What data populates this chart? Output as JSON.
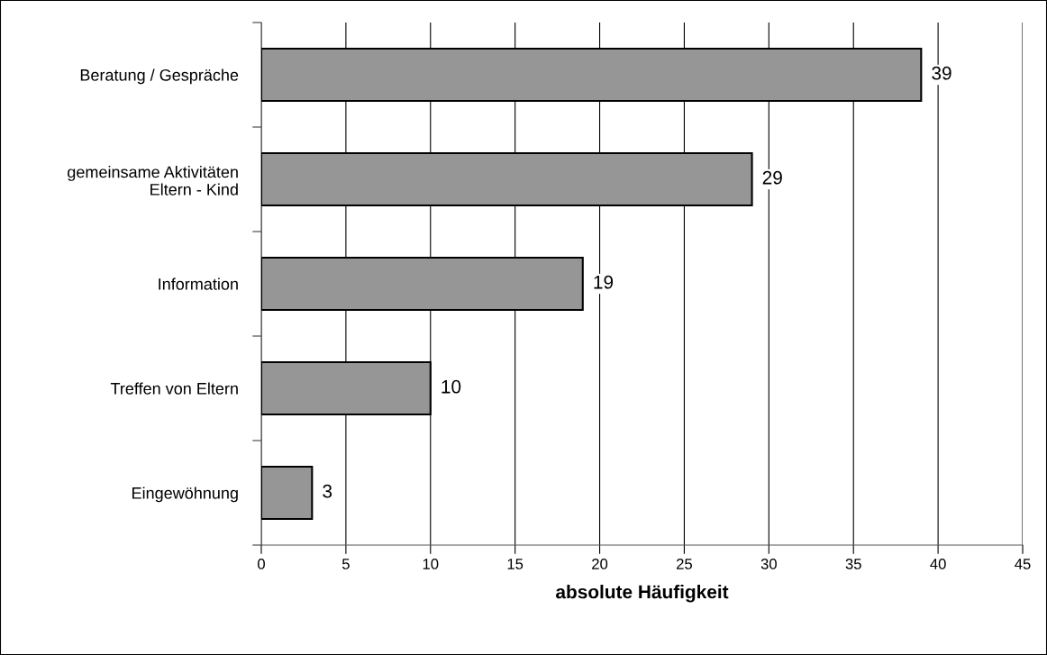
{
  "chart_data": {
    "type": "bar",
    "orientation": "horizontal",
    "xlabel": "absolute Häufigkeit",
    "categories": [
      "Beratung / Gespräche",
      "gemeinsame Aktivitäten\nEltern - Kind",
      "Information",
      "Treffen von Eltern",
      "Eingewöhnung"
    ],
    "values": [
      39,
      29,
      19,
      10,
      3
    ],
    "color": "#969696",
    "xlim": [
      0,
      45
    ],
    "xticks": [
      0,
      5,
      10,
      15,
      20,
      25,
      30,
      35,
      40,
      45
    ],
    "grid": "x",
    "data_labels": true
  }
}
